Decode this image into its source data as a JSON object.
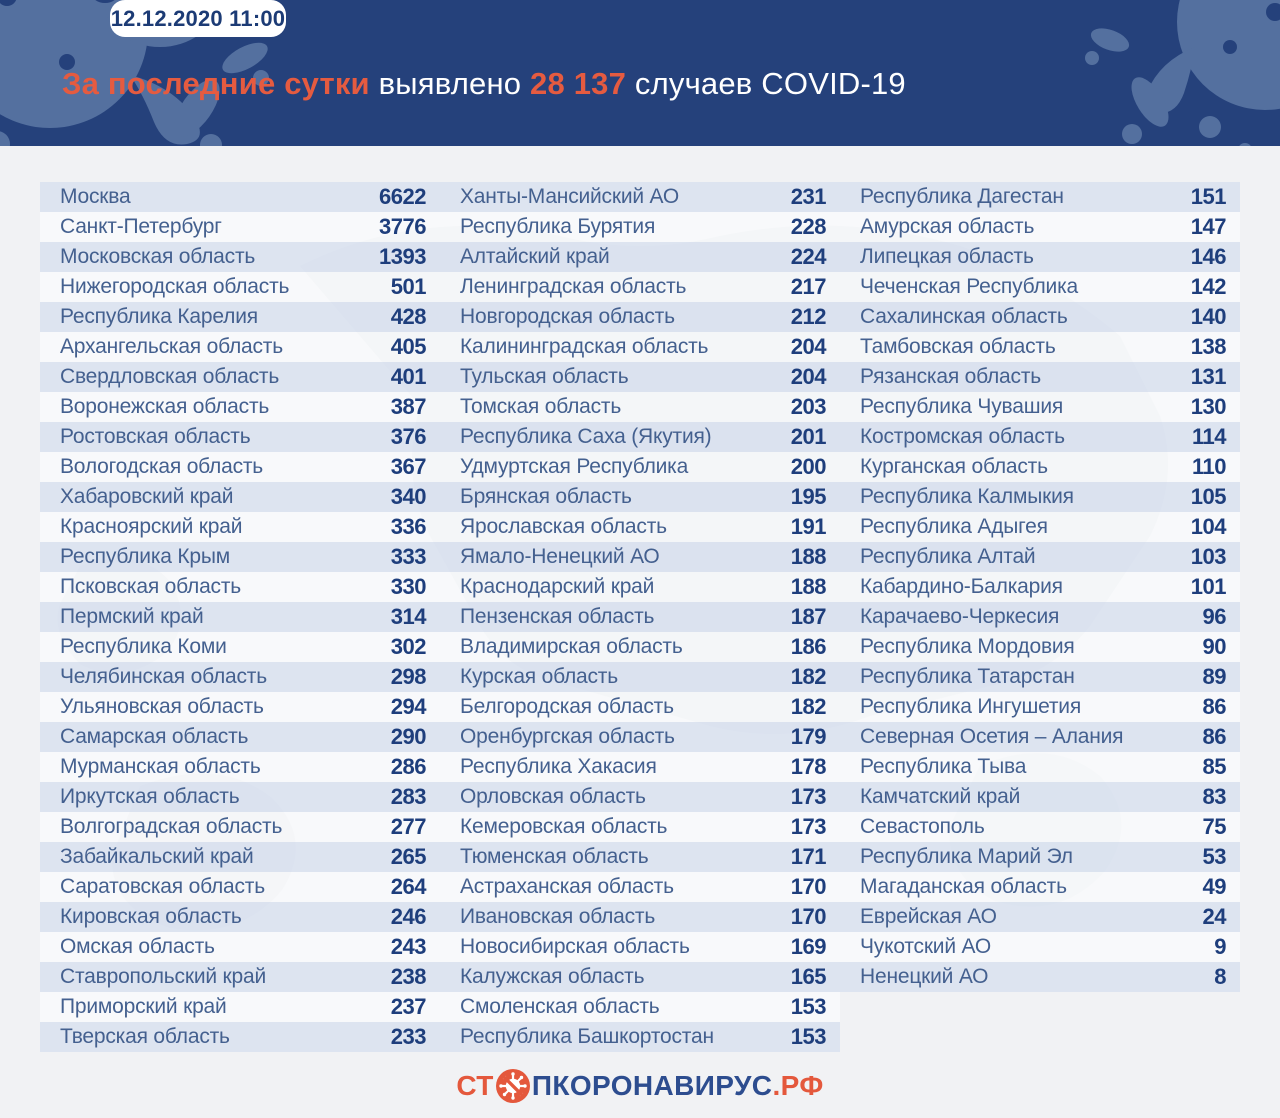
{
  "header": {
    "badge": "12.12.2020 11:00",
    "title": {
      "part1": "За последние сутки",
      "part2": " выявлено ",
      "part3": "28 137",
      "part4": " случаев COVID-19"
    },
    "colors": {
      "background": "#25417b",
      "accent_orange": "#e55b40",
      "blob_blue": "#54709f"
    },
    "decoration_icons": [
      "virus-splat-icon-left",
      "virus-splat-icon-right"
    ]
  },
  "footer": {
    "logo_prefix": "СТ",
    "logo_icon": "no-coronavirus-icon",
    "logo_middle": "ПКОРОНАВИРУС",
    "logo_suffix": ".РФ",
    "colors": {
      "orange": "#e4583c",
      "navy": "#2d4d8f"
    }
  },
  "chart_data": {
    "type": "table",
    "title": "За последние сутки выявлено 28 137 случаев COVID-19",
    "timestamp": "12.12.2020 11:00",
    "total_new_cases": "28 137",
    "layout": "three column groups, region name + daily new cases, alternating row stripes",
    "groups": [
      [
        {
          "name": "Москва",
          "value": 6622
        },
        {
          "name": "Санкт-Петербург",
          "value": 3776
        },
        {
          "name": "Московская область",
          "value": 1393
        },
        {
          "name": "Нижегородская область",
          "value": 501
        },
        {
          "name": "Республика Карелия",
          "value": 428
        },
        {
          "name": "Архангельская область",
          "value": 405
        },
        {
          "name": "Свердловская область",
          "value": 401
        },
        {
          "name": "Воронежская область",
          "value": 387
        },
        {
          "name": "Ростовская область",
          "value": 376
        },
        {
          "name": "Вологодская область",
          "value": 367
        },
        {
          "name": "Хабаровский край",
          "value": 340
        },
        {
          "name": "Красноярский край",
          "value": 336
        },
        {
          "name": "Республика Крым",
          "value": 333
        },
        {
          "name": "Псковская область",
          "value": 330
        },
        {
          "name": "Пермский край",
          "value": 314
        },
        {
          "name": "Республика Коми",
          "value": 302
        },
        {
          "name": "Челябинская область",
          "value": 298
        },
        {
          "name": "Ульяновская область",
          "value": 294
        },
        {
          "name": "Самарская область",
          "value": 290
        },
        {
          "name": "Мурманская область",
          "value": 286
        },
        {
          "name": "Иркутская область",
          "value": 283
        },
        {
          "name": "Волгоградская область",
          "value": 277
        },
        {
          "name": "Забайкальский край",
          "value": 265
        },
        {
          "name": "Саратовская область",
          "value": 264
        },
        {
          "name": "Кировская область",
          "value": 246
        },
        {
          "name": "Омская область",
          "value": 243
        },
        {
          "name": "Ставропольский край",
          "value": 238
        },
        {
          "name": "Приморский край",
          "value": 237
        },
        {
          "name": "Тверская область",
          "value": 233
        }
      ],
      [
        {
          "name": "Ханты-Мансийский АО",
          "value": 231
        },
        {
          "name": "Республика Бурятия",
          "value": 228
        },
        {
          "name": "Алтайский край",
          "value": 224
        },
        {
          "name": "Ленинградская область",
          "value": 217
        },
        {
          "name": "Новгородская область",
          "value": 212
        },
        {
          "name": "Калининградская область",
          "value": 204
        },
        {
          "name": "Тульская область",
          "value": 204
        },
        {
          "name": "Томская область",
          "value": 203
        },
        {
          "name": "Республика Саха (Якутия)",
          "value": 201
        },
        {
          "name": "Удмуртская Республика",
          "value": 200
        },
        {
          "name": "Брянская область",
          "value": 195
        },
        {
          "name": "Ярославская область",
          "value": 191
        },
        {
          "name": "Ямало-Ненецкий АО",
          "value": 188
        },
        {
          "name": "Краснодарский край",
          "value": 188
        },
        {
          "name": "Пензенская область",
          "value": 187
        },
        {
          "name": "Владимирская область",
          "value": 186
        },
        {
          "name": "Курская область",
          "value": 182
        },
        {
          "name": "Белгородская область",
          "value": 182
        },
        {
          "name": "Оренбургская область",
          "value": 179
        },
        {
          "name": "Республика Хакасия",
          "value": 178
        },
        {
          "name": "Орловская область",
          "value": 173
        },
        {
          "name": "Кемеровская область",
          "value": 173
        },
        {
          "name": "Тюменская область",
          "value": 171
        },
        {
          "name": "Астраханская область",
          "value": 170
        },
        {
          "name": "Ивановская область",
          "value": 170
        },
        {
          "name": "Новосибирская область",
          "value": 169
        },
        {
          "name": "Калужская область",
          "value": 165
        },
        {
          "name": "Смоленская область",
          "value": 153
        },
        {
          "name": "Республика Башкортостан",
          "value": 153
        }
      ],
      [
        {
          "name": "Республика Дагестан",
          "value": 151
        },
        {
          "name": "Амурская область",
          "value": 147
        },
        {
          "name": "Липецкая область",
          "value": 146
        },
        {
          "name": "Чеченская Республика",
          "value": 142
        },
        {
          "name": "Сахалинская область",
          "value": 140
        },
        {
          "name": "Тамбовская область",
          "value": 138
        },
        {
          "name": "Рязанская область",
          "value": 131
        },
        {
          "name": "Республика Чувашия",
          "value": 130
        },
        {
          "name": "Костромская область",
          "value": 114
        },
        {
          "name": "Курганская область",
          "value": 110
        },
        {
          "name": "Республика Калмыкия",
          "value": 105
        },
        {
          "name": "Республика Адыгея",
          "value": 104
        },
        {
          "name": "Республика Алтай",
          "value": 103
        },
        {
          "name": "Кабардино-Балкария",
          "value": 101
        },
        {
          "name": "Карачаево-Черкесия",
          "value": 96
        },
        {
          "name": "Республика Мордовия",
          "value": 90
        },
        {
          "name": "Республика Татарстан",
          "value": 89
        },
        {
          "name": "Республика Ингушетия",
          "value": 86
        },
        {
          "name": "Северная Осетия – Алания",
          "value": 86
        },
        {
          "name": "Республика Тыва",
          "value": 85
        },
        {
          "name": "Камчатский край",
          "value": 83
        },
        {
          "name": "Севастополь",
          "value": 75
        },
        {
          "name": "Республика Марий Эл",
          "value": 53
        },
        {
          "name": "Магаданская область",
          "value": 49
        },
        {
          "name": "Еврейская АО",
          "value": 24
        },
        {
          "name": "Чукотский АО",
          "value": 9
        },
        {
          "name": "Ненецкий АО",
          "value": 8
        }
      ]
    ]
  }
}
